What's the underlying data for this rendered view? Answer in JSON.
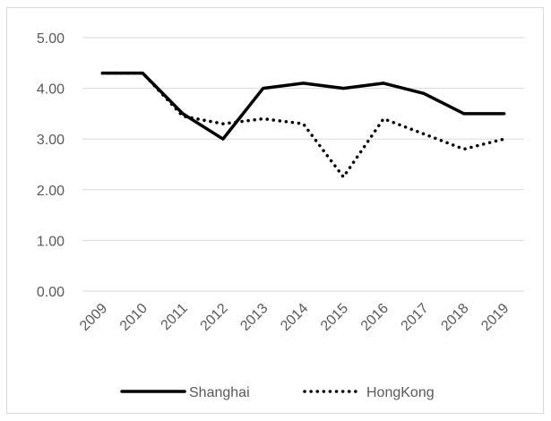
{
  "chart_data": {
    "type": "line",
    "title": "",
    "xlabel": "",
    "ylabel": "",
    "categories": [
      "2009",
      "2010",
      "2011",
      "2012",
      "2013",
      "2014",
      "2015",
      "2016",
      "2017",
      "2018",
      "2019"
    ],
    "ylim": [
      0,
      5
    ],
    "yticks": [
      "0.00",
      "1.00",
      "2.00",
      "3.00",
      "4.00",
      "5.00"
    ],
    "grid": true,
    "legend": "bottom",
    "series": [
      {
        "name": "Shanghai",
        "style": "solid",
        "color": "#000000",
        "values": [
          4.3,
          4.3,
          3.5,
          3.0,
          4.0,
          4.1,
          4.0,
          4.1,
          3.9,
          3.5,
          3.5
        ]
      },
      {
        "name": "HongKong",
        "style": "dotted",
        "color": "#000000",
        "values": [
          4.3,
          4.3,
          3.45,
          3.3,
          3.4,
          3.3,
          2.25,
          3.4,
          3.1,
          2.8,
          3.0
        ]
      }
    ]
  }
}
